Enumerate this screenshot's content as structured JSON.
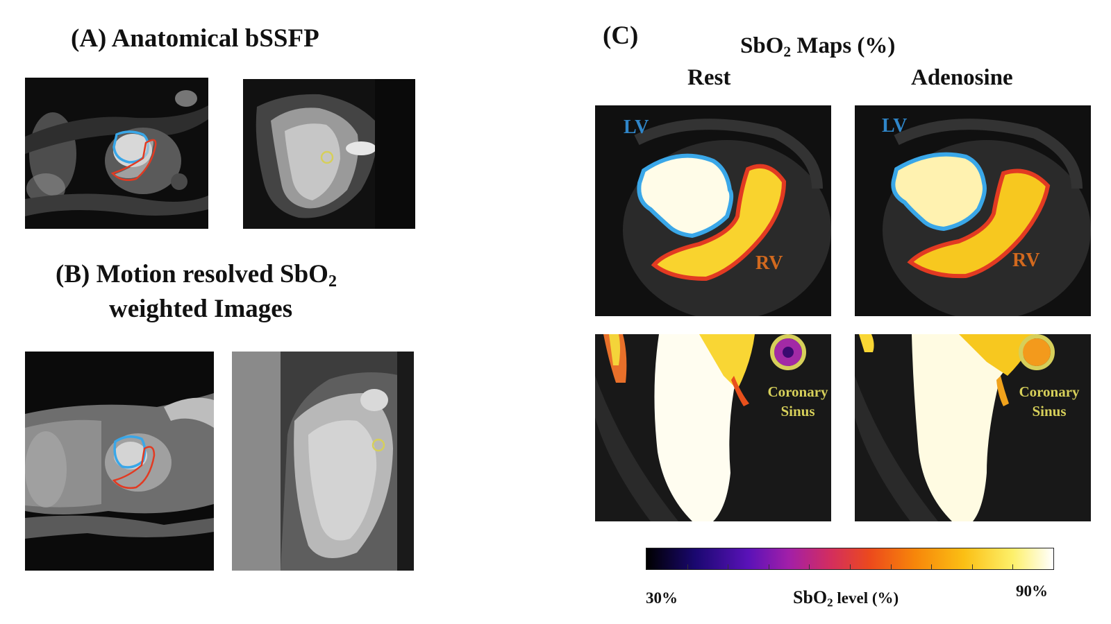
{
  "panel_a": {
    "title": "(A) Anatomical bSSFP"
  },
  "panel_b": {
    "title_line1_pre": "(B) Motion resolved SbO",
    "title_line1_sub": "2",
    "title_line2": "weighted Images"
  },
  "panel_c": {
    "letter": "(C)",
    "maps_title_pre": "SbO",
    "maps_title_sub": "2",
    "maps_title_post": " Maps (%)",
    "col_rest": "Rest",
    "col_adenosine": "Adenosine",
    "label_lv": "LV",
    "label_rv": "RV",
    "label_cs_line1": "Coronary",
    "label_cs_line2": "Sinus"
  },
  "colorbar": {
    "min_label": "30%",
    "max_label": "90%",
    "label_pre": "SbO",
    "label_sub": "2",
    "label_post": " level (%)",
    "min_value": 30,
    "max_value": 90
  },
  "colors": {
    "lv_contour": "#3aa7e8",
    "rv_contour": "#e23a22",
    "cs_contour": "#d6cf5a",
    "lv_text": "#2f86c9",
    "rv_text": "#d2691e"
  }
}
